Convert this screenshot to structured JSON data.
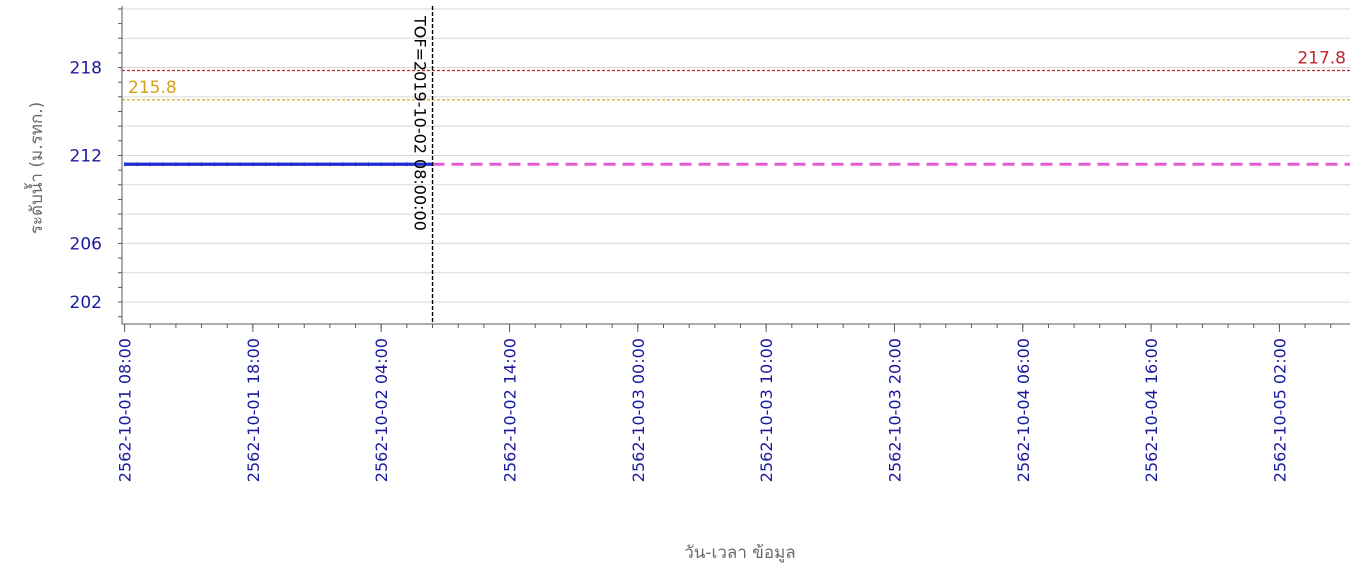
{
  "chart_data": {
    "type": "line",
    "xlabel": "วัน-เวลา ข้อมูล",
    "ylabel": "ระดับน้ำ (ม.รทก.)",
    "x_tick_labels": [
      "2562-10-01 08:00",
      "2562-10-01 18:00",
      "2562-10-02 04:00",
      "2562-10-02 14:00",
      "2562-10-03 00:00",
      "2562-10-03 10:00",
      "2562-10-03 20:00",
      "2562-10-04 06:00",
      "2562-10-04 16:00",
      "2562-10-05 02:00"
    ],
    "x_range_hours": [
      -0.2,
      95.5
    ],
    "y_ticks": [
      202,
      206,
      212,
      218
    ],
    "ylim": [
      200.5,
      222.2
    ],
    "grid": true,
    "series": [
      {
        "color": "#1f2fd6",
        "style": "solid",
        "x_hours": [
          0,
          24
        ],
        "values": [
          211.4,
          211.4
        ]
      },
      {
        "color": "#e35bd0",
        "style": "dashed",
        "x_hours": [
          24,
          95.5
        ],
        "values": [
          211.4,
          211.4
        ]
      }
    ],
    "thresholds": [
      {
        "label": "217.8",
        "value": 217.8,
        "color": "#c0272d"
      },
      {
        "label": "215.8",
        "value": 215.8,
        "color": "#d4a017"
      }
    ],
    "markers": [
      {
        "label": "TOF=2019-10-02 08:00:00",
        "x_hours": 24,
        "color": "#000000"
      }
    ]
  }
}
